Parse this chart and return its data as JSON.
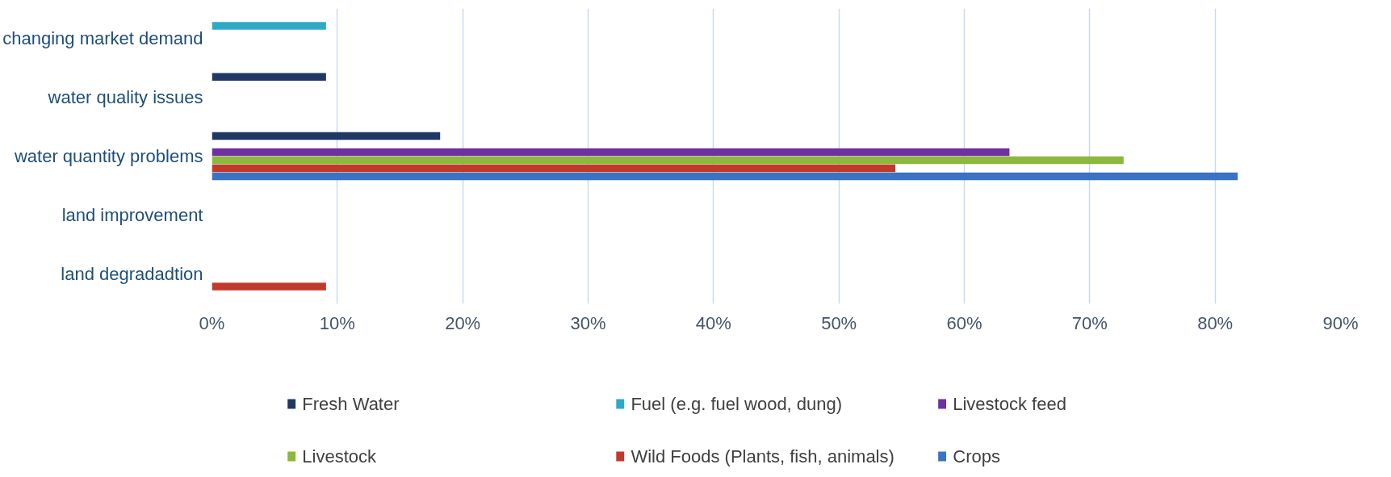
{
  "chart_data": {
    "type": "bar",
    "orientation": "horizontal",
    "categories": [
      "changing market demand",
      "water quality issues",
      "water quantity problems",
      "land improvement",
      "land degradadtion"
    ],
    "series": [
      {
        "name": "Fresh Water",
        "color": "#1f3864",
        "values": [
          0,
          9.1,
          18.2,
          0,
          0
        ]
      },
      {
        "name": "Fuel (e.g. fuel wood, dung)",
        "color": "#2eaac6",
        "values": [
          9.1,
          0,
          0,
          0,
          0
        ]
      },
      {
        "name": "Livestock feed",
        "color": "#7030a0",
        "values": [
          0,
          0,
          63.6,
          0,
          0
        ]
      },
      {
        "name": "Livestock",
        "color": "#8cb83e",
        "values": [
          0,
          0,
          72.7,
          0,
          0
        ]
      },
      {
        "name": "Wild Foods (Plants, fish, animals)",
        "color": "#c0392b",
        "values": [
          0,
          0,
          54.5,
          0,
          9.1
        ]
      },
      {
        "name": "Crops",
        "color": "#3a72c4",
        "values": [
          0,
          0,
          81.8,
          0,
          0
        ]
      }
    ],
    "xlim": [
      0,
      90
    ],
    "xticks": [
      {
        "value": 0,
        "label": "0%"
      },
      {
        "value": 10,
        "label": "10%"
      },
      {
        "value": 20,
        "label": "20%"
      },
      {
        "value": 30,
        "label": "30%"
      },
      {
        "value": 40,
        "label": "40%"
      },
      {
        "value": 50,
        "label": "50%"
      },
      {
        "value": 60,
        "label": "60%"
      },
      {
        "value": 70,
        "label": "70%"
      },
      {
        "value": 80,
        "label": "80%"
      },
      {
        "value": 90,
        "label": "90%"
      }
    ],
    "grid": "x",
    "legend": "bottom"
  }
}
